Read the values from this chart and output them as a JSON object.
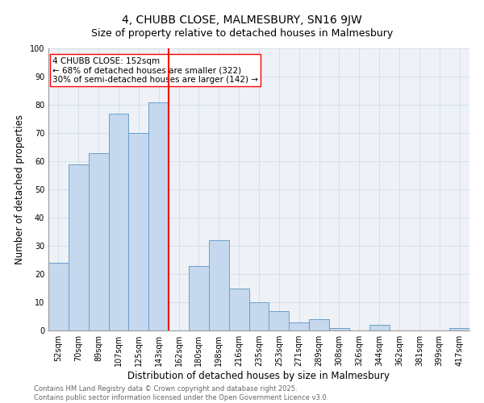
{
  "title1": "4, CHUBB CLOSE, MALMESBURY, SN16 9JW",
  "title2": "Size of property relative to detached houses in Malmesbury",
  "xlabel": "Distribution of detached houses by size in Malmesbury",
  "ylabel": "Number of detached properties",
  "bar_labels": [
    "52sqm",
    "70sqm",
    "89sqm",
    "107sqm",
    "125sqm",
    "143sqm",
    "162sqm",
    "180sqm",
    "198sqm",
    "216sqm",
    "235sqm",
    "253sqm",
    "271sqm",
    "289sqm",
    "308sqm",
    "326sqm",
    "344sqm",
    "362sqm",
    "381sqm",
    "399sqm",
    "417sqm"
  ],
  "bar_values": [
    24,
    59,
    63,
    77,
    70,
    81,
    0,
    23,
    32,
    15,
    10,
    7,
    3,
    4,
    1,
    0,
    2,
    0,
    0,
    0,
    1
  ],
  "bar_color": "#c5d8ee",
  "bar_edge_color": "#6a9fcb",
  "vline_color": "red",
  "annotation_text": "4 CHUBB CLOSE: 152sqm\n← 68% of detached houses are smaller (322)\n30% of semi-detached houses are larger (142) →",
  "annotation_box_edge": "red",
  "annotation_fontsize": 7.5,
  "ylim": [
    0,
    100
  ],
  "yticks": [
    0,
    10,
    20,
    30,
    40,
    50,
    60,
    70,
    80,
    90,
    100
  ],
  "grid_color": "#d0dde8",
  "background_color": "#eef2f7",
  "footer_text": "Contains HM Land Registry data © Crown copyright and database right 2025.\nContains public sector information licensed under the Open Government Licence v3.0.",
  "title1_fontsize": 10,
  "title2_fontsize": 9,
  "xlabel_fontsize": 8.5,
  "ylabel_fontsize": 8.5,
  "tick_fontsize": 7,
  "footer_fontsize": 6
}
